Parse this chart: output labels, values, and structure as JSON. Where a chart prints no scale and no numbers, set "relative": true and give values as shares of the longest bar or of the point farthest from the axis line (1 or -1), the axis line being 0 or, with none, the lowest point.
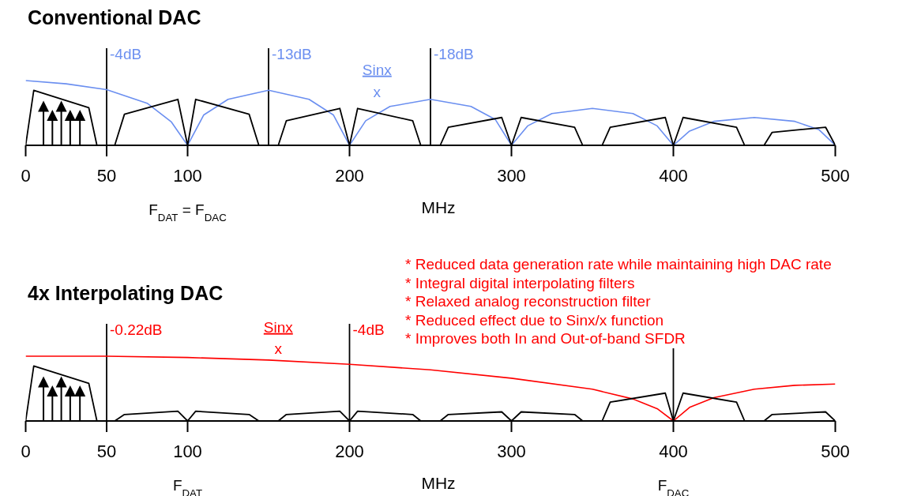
{
  "chart_data": [
    {
      "type": "line",
      "title": "Conventional DAC",
      "xlabel": "MHz",
      "relative": true,
      "xlim": [
        0,
        500
      ],
      "xticks": [
        0,
        50,
        100,
        200,
        300,
        400,
        500
      ],
      "series": [
        {
          "color": "#6b8ff0",
          "x": [
            0,
            25,
            50,
            75,
            90,
            100,
            110,
            125,
            150,
            175,
            190,
            200,
            210,
            225,
            250,
            275,
            290,
            300,
            310,
            325,
            350,
            375,
            390,
            400,
            410,
            425,
            450,
            475,
            490,
            500
          ],
          "values": [
            1.0,
            0.95,
            0.86,
            0.65,
            0.36,
            0,
            0.47,
            0.71,
            0.85,
            0.71,
            0.47,
            0,
            0.38,
            0.6,
            0.71,
            0.6,
            0.4,
            0,
            0.3,
            0.49,
            0.57,
            0.49,
            0.3,
            0,
            0.22,
            0.37,
            0.43,
            0.37,
            0.24,
            0
          ]
        },
        {
          "color": "#000000",
          "x": [
            0,
            5,
            39,
            44,
            55,
            61,
            94,
            100,
            105,
            138,
            144,
            156,
            161,
            194,
            200,
            205,
            239,
            244,
            256,
            261,
            294,
            300,
            306,
            339,
            344,
            356,
            361,
            395,
            400,
            406,
            439,
            444,
            456,
            461,
            494,
            500
          ],
          "values": [
            0,
            0.85,
            0.58,
            0,
            0,
            0.48,
            0.71,
            0,
            0.71,
            0.48,
            0,
            0,
            0.38,
            0.57,
            0,
            0.57,
            0.38,
            0,
            0,
            0.28,
            0.43,
            0,
            0.43,
            0.28,
            0,
            0,
            0.28,
            0.43,
            0,
            0.43,
            0.28,
            0,
            0,
            0.2,
            0.28,
            0
          ]
        }
      ],
      "ref_lines": [
        {
          "axis": "x",
          "value": 50,
          "label": "-4dB"
        },
        {
          "axis": "x",
          "value": 150,
          "label": "-13dB"
        },
        {
          "axis": "x",
          "value": 250,
          "label": "-18dB"
        }
      ],
      "annotations": [
        "Sinx",
        "x",
        "F$_{DAT}$ = F$_{DAC}$"
      ]
    },
    {
      "type": "line",
      "title": "4x Interpolating DAC",
      "xlabel": "MHz",
      "relative": true,
      "xlim": [
        0,
        500
      ],
      "xticks": [
        0,
        50,
        100,
        200,
        300,
        400,
        500
      ],
      "series": [
        {
          "color": "#ff0000",
          "x": [
            0,
            50,
            100,
            150,
            200,
            250,
            300,
            350,
            375,
            390,
            400,
            410,
            425,
            450,
            475,
            500
          ],
          "values": [
            1,
            1,
            0.98,
            0.94,
            0.875,
            0.79,
            0.66,
            0.49,
            0.34,
            0.19,
            0,
            0.21,
            0.36,
            0.49,
            0.55,
            0.57
          ]
        },
        {
          "color": "#000000",
          "x": [
            0,
            5,
            39,
            44,
            55,
            61,
            94,
            100,
            105,
            138,
            144,
            156,
            161,
            194,
            200,
            205,
            239,
            244,
            256,
            261,
            294,
            300,
            306,
            339,
            344,
            356,
            361,
            395,
            400,
            406,
            439,
            444,
            456,
            461,
            494,
            500
          ],
          "values": [
            0,
            0.85,
            0.58,
            0,
            0,
            0.1,
            0.15,
            0,
            0.15,
            0.1,
            0,
            0,
            0.1,
            0.15,
            0,
            0.15,
            0.1,
            0,
            0,
            0.1,
            0.14,
            0,
            0.14,
            0.1,
            0,
            0,
            0.29,
            0.43,
            0,
            0.43,
            0.29,
            0,
            0,
            0.1,
            0.14,
            0
          ]
        }
      ],
      "ref_lines": [
        {
          "axis": "x",
          "value": 50,
          "label": "-0.22dB"
        },
        {
          "axis": "x",
          "value": 200,
          "label": "-4dB"
        },
        {
          "axis": "x",
          "value": 400
        }
      ],
      "annotations": [
        "Sinx",
        "x",
        "F$_{DAT}$",
        "F$_{DAC}$",
        "* Reduced data generation rate while maintaining high DAC rate",
        "* Integral digital interpolating filters",
        "* Relaxed analog reconstruction filter",
        "* Reduced effect due to Sinx/x function",
        "* Improves both In and Out-of-band SFDR"
      ]
    }
  ]
}
